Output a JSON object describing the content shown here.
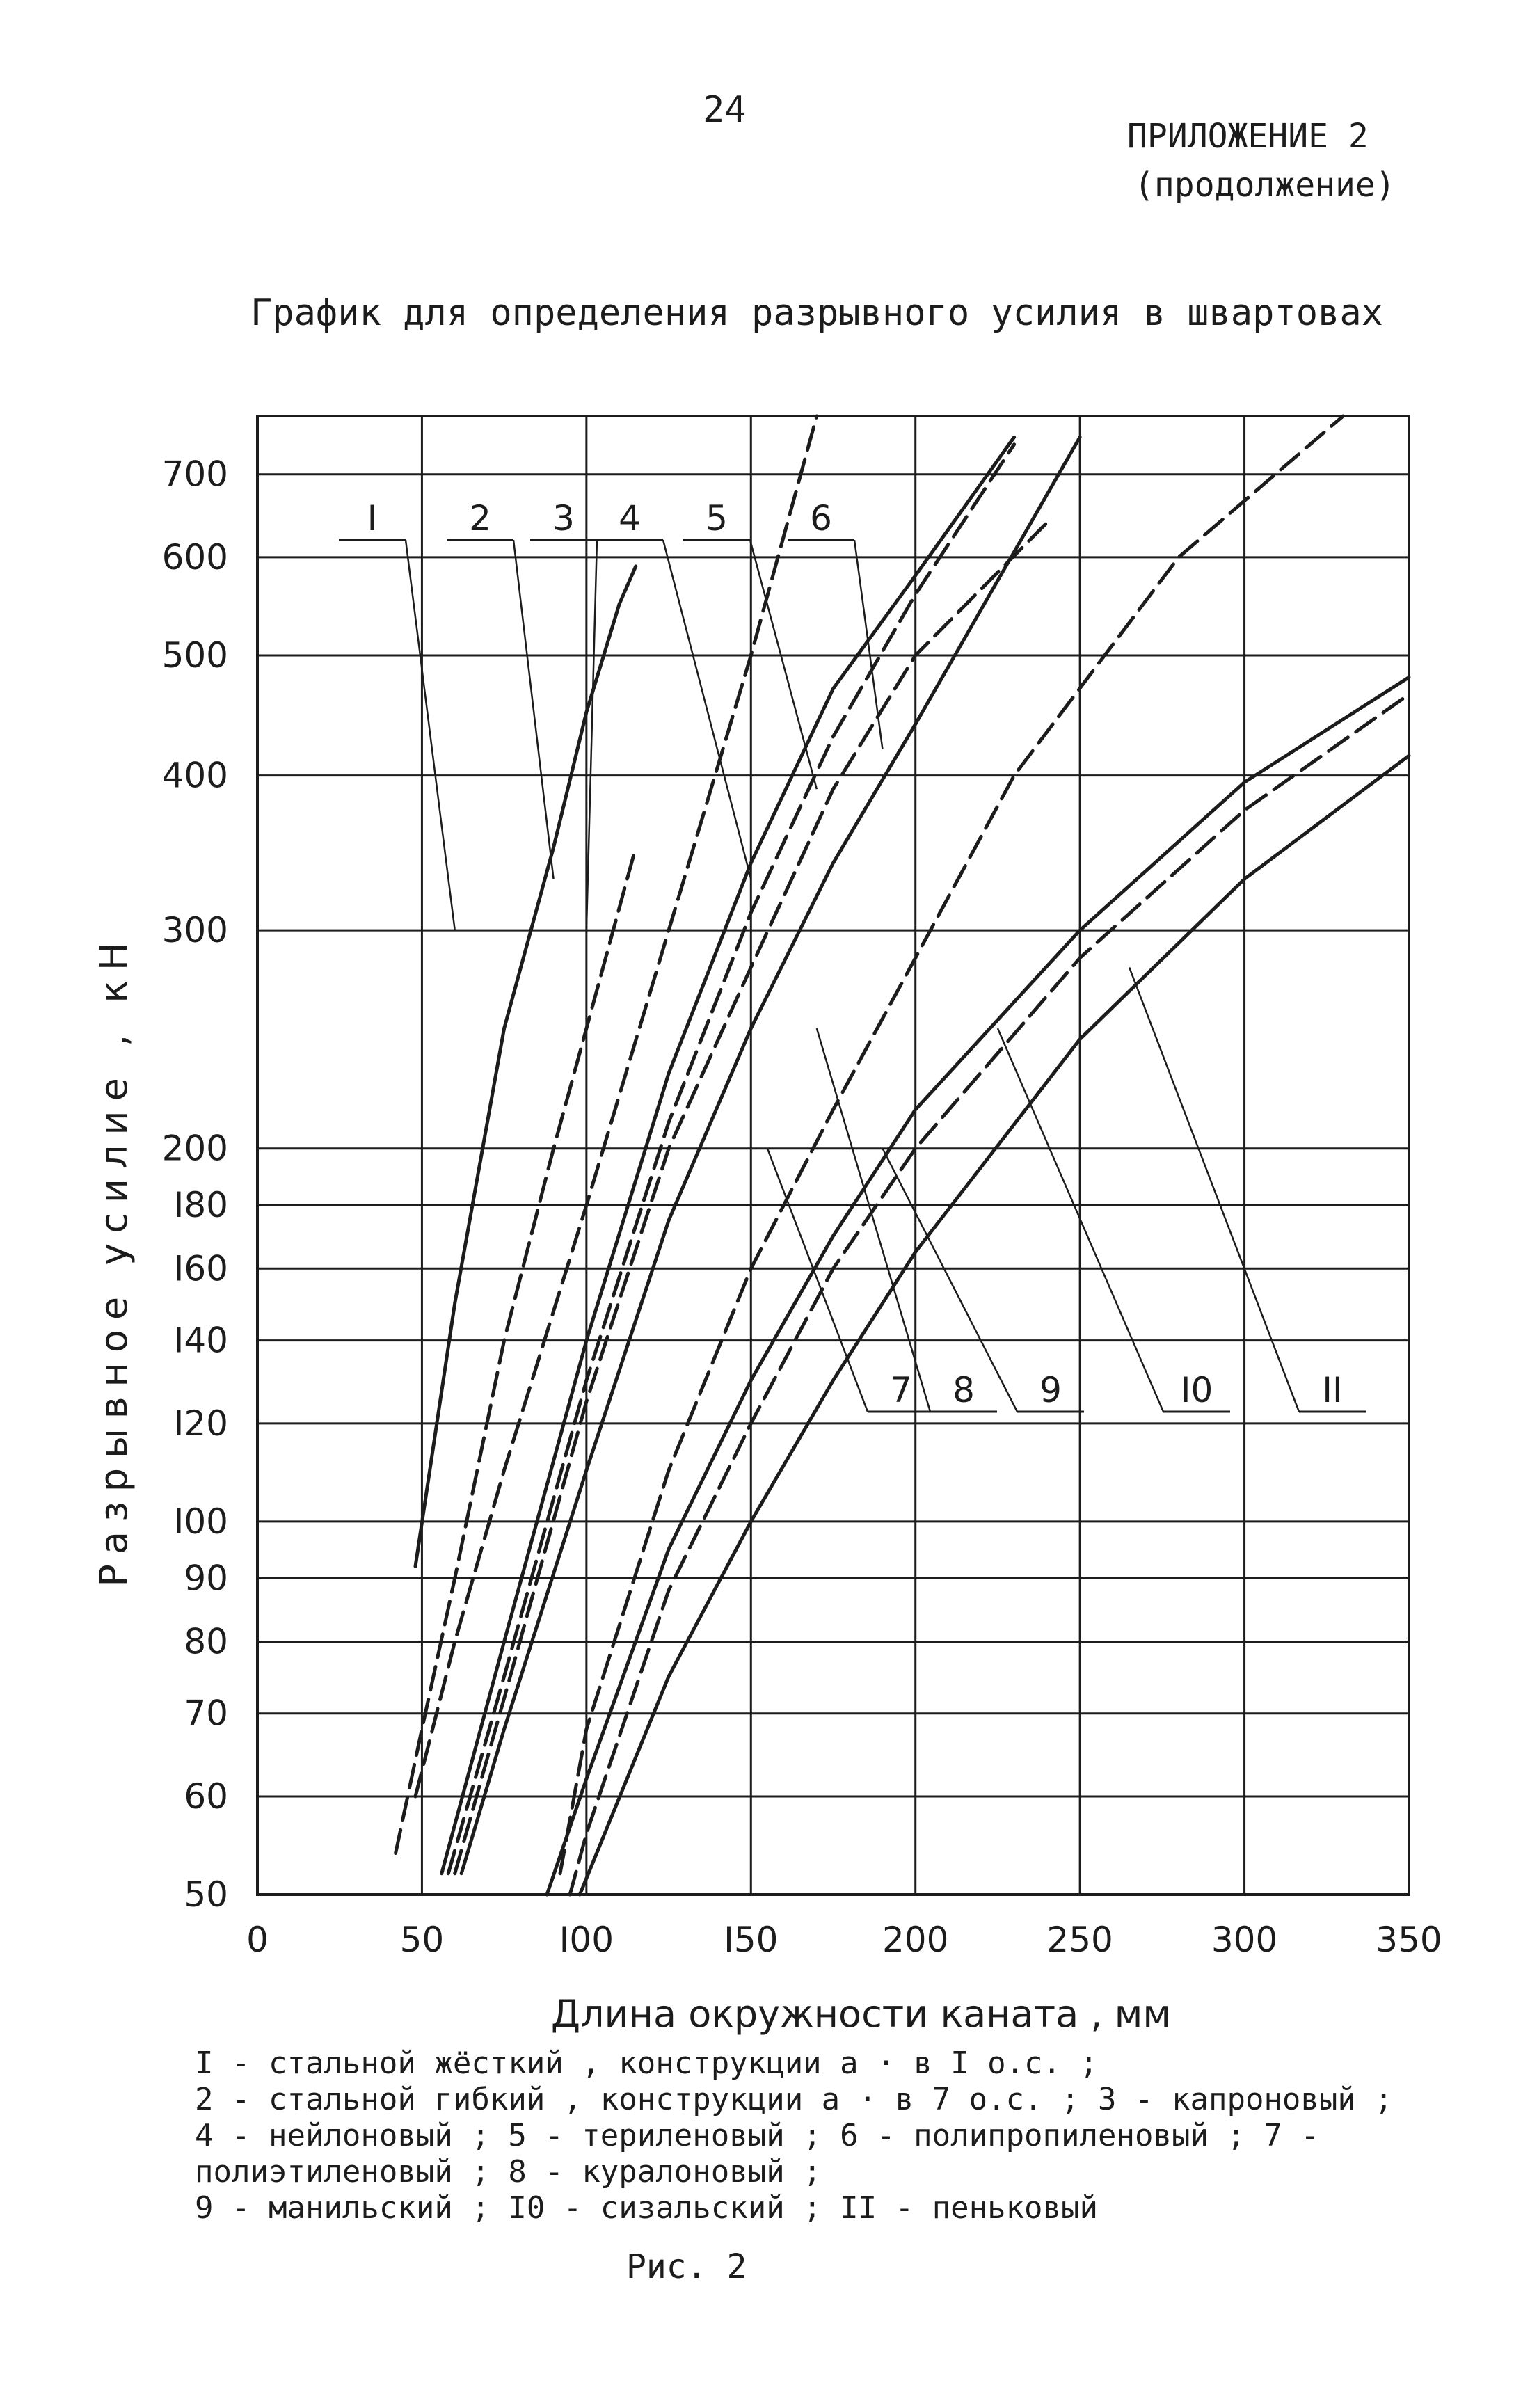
{
  "page": {
    "number": "24",
    "appendix_title": "ПРИЛОЖЕНИЕ 2",
    "appendix_subtitle": "(продолжение)",
    "chart_title": "График для определения разрывного усилия в швартовах",
    "legend": [
      "I - стальной жёсткий , конструкции а · в I о.с. ;",
      "2 - стальной гибкий , конструкции а · в 7 о.с. ; 3 - капроновый ; 4 - нейлоновый ; 5 - териленовый ; 6 - полипропиленовый ; 7 - полиэтиленовый ; 8 - куралоновый ;",
      "9 - манильский ; I0 - сизальский ; II - пеньковый"
    ],
    "figure_caption": "Рис. 2"
  },
  "colors": {
    "ink": "#1c1c1c",
    "grid": "#2a2a2a",
    "paper": "#ffffff"
  },
  "chart_data": {
    "type": "line",
    "title": "График для определения разрывного усилия в швартовах",
    "xlabel": "Длина окружности каната , мм",
    "ylabel": "Разрывное усилие , кН",
    "xlim": [
      0,
      350
    ],
    "ylim": [
      50,
      780
    ],
    "y_scale": "log",
    "grid": true,
    "x_ticks": [
      0,
      50,
      100,
      150,
      200,
      250,
      300,
      350
    ],
    "x_tick_labels": [
      "0",
      "50",
      "I00",
      "I50",
      "200",
      "250",
      "300",
      "350"
    ],
    "y_ticks": [
      50,
      60,
      70,
      80,
      90,
      100,
      120,
      140,
      160,
      180,
      200,
      300,
      400,
      500,
      600,
      700
    ],
    "y_tick_labels": [
      "50",
      "60",
      "70",
      "80",
      "90",
      "I00",
      "I20",
      "I40",
      "I60",
      "I80",
      "200",
      "300",
      "400",
      "500",
      "600",
      "700"
    ],
    "series": [
      {
        "name": "I",
        "style": "solid",
        "x": [
          48,
          60,
          75,
          90,
          100,
          110,
          115
        ],
        "y": [
          92,
          150,
          250,
          350,
          450,
          550,
          590
        ]
      },
      {
        "name": "2",
        "style": "dash",
        "x": [
          42,
          50,
          60,
          75,
          90,
          100,
          115
        ],
        "y": [
          54,
          68,
          90,
          140,
          200,
          250,
          350
        ]
      },
      {
        "name": "3",
        "style": "dash",
        "x": [
          48,
          60,
          75,
          100,
          125,
          150,
          170
        ],
        "y": [
          60,
          80,
          110,
          180,
          300,
          500,
          780
        ]
      },
      {
        "name": "4",
        "style": "solid",
        "x": [
          56,
          75,
          100,
          125,
          150,
          175,
          200,
          230
        ],
        "y": [
          52,
          80,
          140,
          230,
          340,
          470,
          580,
          750
        ]
      },
      {
        "name": "5",
        "style": "dash",
        "x": [
          58,
          75,
          100,
          125,
          150,
          175,
          200,
          230
        ],
        "y": [
          52,
          75,
          130,
          210,
          310,
          430,
          560,
          740
        ]
      },
      {
        "name": "6",
        "style": "dash",
        "x": [
          60,
          75,
          100,
          125,
          150,
          175,
          200,
          240
        ],
        "y": [
          52,
          72,
          125,
          200,
          280,
          390,
          500,
          640
        ]
      },
      {
        "name": "7",
        "style": "solid",
        "x": [
          62,
          75,
          100,
          125,
          150,
          175,
          200,
          250
        ],
        "y": [
          52,
          68,
          110,
          175,
          250,
          340,
          440,
          750
        ]
      },
      {
        "name": "8",
        "style": "dash",
        "x": [
          92,
          100,
          125,
          150,
          175,
          200,
          230,
          280,
          330
        ],
        "y": [
          52,
          68,
          110,
          160,
          215,
          285,
          400,
          600,
          780
        ]
      },
      {
        "name": "9",
        "style": "solid",
        "x": [
          88,
          100,
          125,
          150,
          175,
          200,
          250,
          300,
          350
        ],
        "y": [
          50,
          62,
          95,
          130,
          170,
          215,
          300,
          395,
          480
        ]
      },
      {
        "name": "I0",
        "style": "dash",
        "x": [
          95,
          100,
          125,
          150,
          175,
          200,
          250,
          300,
          350
        ],
        "y": [
          50,
          56,
          88,
          120,
          160,
          200,
          285,
          375,
          465
        ]
      },
      {
        "name": "II",
        "style": "solid",
        "x": [
          98,
          125,
          150,
          175,
          200,
          250,
          300,
          350
        ],
        "y": [
          50,
          75,
          100,
          130,
          165,
          245,
          330,
          415
        ]
      }
    ]
  }
}
